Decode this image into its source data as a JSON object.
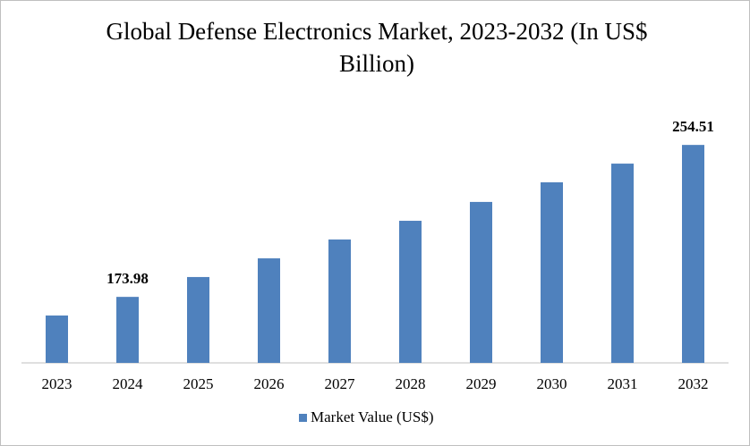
{
  "chart_data": {
    "type": "bar",
    "title": "Global Defense Electronics Market, 2023-2032 (In US$ Billion)",
    "categories": [
      "2023",
      "2024",
      "2025",
      "2026",
      "2027",
      "2028",
      "2029",
      "2030",
      "2031",
      "2032"
    ],
    "series": [
      {
        "name": "Market Value (US$)",
        "color": "#4f81bd",
        "values": [
          164.1,
          173.98,
          184.5,
          194.4,
          204.4,
          214.3,
          224.3,
          234.7,
          244.6,
          254.51
        ],
        "value_labels": [
          null,
          "173.98",
          null,
          null,
          null,
          null,
          null,
          null,
          null,
          "254.51"
        ]
      }
    ],
    "ylim": [
      139,
      265
    ],
    "legend": "bottom"
  }
}
